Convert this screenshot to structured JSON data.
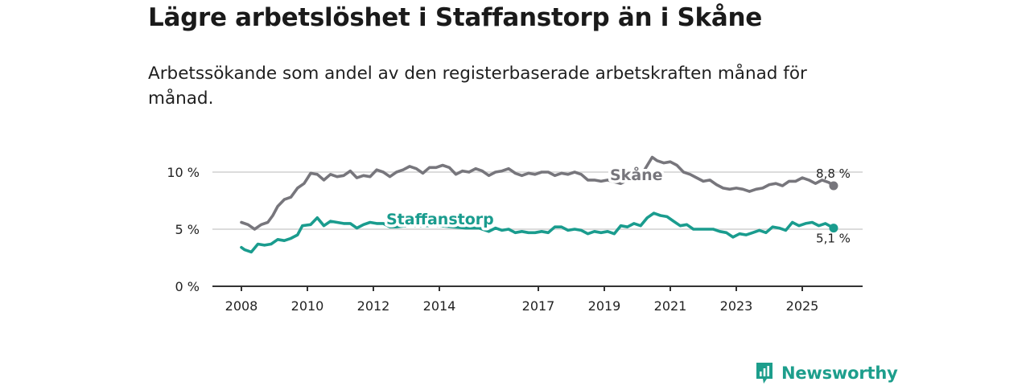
{
  "title": "Lägre arbetslöshet i Staffanstorp än i Skåne",
  "subtitle": "Arbetssökande som andel av den registerbaserade arbetskraften månad för månad.",
  "brand": {
    "name": "Newsworthy",
    "icon": "newsworthy-logo-icon"
  },
  "colors": {
    "skane": "#77767c",
    "staffanstorp": "#1a9c8e",
    "grid": "#dcdcdc",
    "axis": "#333333"
  },
  "chart_data": {
    "type": "line",
    "xlabel": "",
    "ylabel": "",
    "xlim": [
      2007.9,
      2026.4
    ],
    "ylim": [
      0,
      10
    ],
    "x_ticks": [
      2008,
      2010,
      2012,
      2014,
      2017,
      2019,
      2021,
      2023,
      2025
    ],
    "x_tick_labels": [
      "2008",
      "2010",
      "2012",
      "2014",
      "2017",
      "2019",
      "2021",
      "2023",
      "2025"
    ],
    "y_ticks": [
      0,
      5,
      10
    ],
    "y_tick_labels": [
      "0 %",
      "5 %",
      "10 %"
    ],
    "grid": true,
    "series": [
      {
        "name": "Skåne",
        "end_label": "8,8 %",
        "points": [
          [
            2008.0,
            5.6
          ],
          [
            2008.2,
            5.4
          ],
          [
            2008.4,
            5.0
          ],
          [
            2008.6,
            5.4
          ],
          [
            2008.8,
            5.6
          ],
          [
            2008.95,
            6.2
          ],
          [
            2009.1,
            7.0
          ],
          [
            2009.3,
            7.6
          ],
          [
            2009.5,
            7.8
          ],
          [
            2009.7,
            8.6
          ],
          [
            2009.9,
            9.0
          ],
          [
            2010.1,
            9.9
          ],
          [
            2010.3,
            9.8
          ],
          [
            2010.5,
            9.3
          ],
          [
            2010.7,
            9.8
          ],
          [
            2010.9,
            9.6
          ],
          [
            2011.1,
            9.7
          ],
          [
            2011.3,
            10.1
          ],
          [
            2011.5,
            9.5
          ],
          [
            2011.7,
            9.7
          ],
          [
            2011.9,
            9.6
          ],
          [
            2012.1,
            10.2
          ],
          [
            2012.3,
            10.0
          ],
          [
            2012.5,
            9.6
          ],
          [
            2012.7,
            10.0
          ],
          [
            2012.9,
            10.2
          ],
          [
            2013.1,
            10.5
          ],
          [
            2013.3,
            10.3
          ],
          [
            2013.5,
            9.9
          ],
          [
            2013.7,
            10.4
          ],
          [
            2013.9,
            10.4
          ],
          [
            2014.1,
            10.6
          ],
          [
            2014.3,
            10.4
          ],
          [
            2014.5,
            9.8
          ],
          [
            2014.7,
            10.1
          ],
          [
            2014.9,
            10.0
          ],
          [
            2015.1,
            10.3
          ],
          [
            2015.3,
            10.1
          ],
          [
            2015.5,
            9.7
          ],
          [
            2015.7,
            10.0
          ],
          [
            2015.9,
            10.1
          ],
          [
            2016.1,
            10.3
          ],
          [
            2016.3,
            9.9
          ],
          [
            2016.5,
            9.7
          ],
          [
            2016.7,
            9.9
          ],
          [
            2016.9,
            9.8
          ],
          [
            2017.1,
            10.0
          ],
          [
            2017.3,
            10.0
          ],
          [
            2017.5,
            9.7
          ],
          [
            2017.7,
            9.9
          ],
          [
            2017.9,
            9.8
          ],
          [
            2018.1,
            10.0
          ],
          [
            2018.3,
            9.8
          ],
          [
            2018.5,
            9.3
          ],
          [
            2018.7,
            9.3
          ],
          [
            2018.9,
            9.2
          ],
          [
            2019.1,
            9.3
          ],
          [
            2019.5,
            9.0
          ],
          [
            2019.9,
            9.6
          ],
          [
            2020.2,
            10.1
          ],
          [
            2020.45,
            11.3
          ],
          [
            2020.6,
            11.0
          ],
          [
            2020.8,
            10.8
          ],
          [
            2021.0,
            10.9
          ],
          [
            2021.2,
            10.6
          ],
          [
            2021.4,
            10.0
          ],
          [
            2021.6,
            9.8
          ],
          [
            2021.8,
            9.5
          ],
          [
            2022.0,
            9.2
          ],
          [
            2022.2,
            9.3
          ],
          [
            2022.4,
            8.9
          ],
          [
            2022.6,
            8.6
          ],
          [
            2022.8,
            8.5
          ],
          [
            2023.0,
            8.6
          ],
          [
            2023.2,
            8.5
          ],
          [
            2023.4,
            8.3
          ],
          [
            2023.6,
            8.5
          ],
          [
            2023.8,
            8.6
          ],
          [
            2024.0,
            8.9
          ],
          [
            2024.2,
            9.0
          ],
          [
            2024.4,
            8.8
          ],
          [
            2024.6,
            9.2
          ],
          [
            2024.8,
            9.2
          ],
          [
            2025.0,
            9.5
          ],
          [
            2025.2,
            9.3
          ],
          [
            2025.4,
            9.0
          ],
          [
            2025.6,
            9.3
          ],
          [
            2025.8,
            9.1
          ],
          [
            2025.95,
            8.8
          ]
        ]
      },
      {
        "name": "Staffanstorp",
        "end_label": "5,1 %",
        "points": [
          [
            2008.0,
            3.4
          ],
          [
            2008.1,
            3.2
          ],
          [
            2008.3,
            3.0
          ],
          [
            2008.5,
            3.7
          ],
          [
            2008.7,
            3.6
          ],
          [
            2008.9,
            3.7
          ],
          [
            2009.1,
            4.1
          ],
          [
            2009.3,
            4.0
          ],
          [
            2009.5,
            4.2
          ],
          [
            2009.7,
            4.5
          ],
          [
            2009.85,
            5.3
          ],
          [
            2010.1,
            5.4
          ],
          [
            2010.3,
            6.0
          ],
          [
            2010.5,
            5.3
          ],
          [
            2010.7,
            5.7
          ],
          [
            2010.9,
            5.6
          ],
          [
            2011.1,
            5.5
          ],
          [
            2011.3,
            5.5
          ],
          [
            2011.5,
            5.1
          ],
          [
            2011.7,
            5.4
          ],
          [
            2011.9,
            5.6
          ],
          [
            2012.1,
            5.5
          ],
          [
            2012.3,
            5.5
          ],
          [
            2012.5,
            5.2
          ],
          [
            2012.7,
            5.2
          ],
          [
            2013.0,
            5.3
          ],
          [
            2013.5,
            5.3
          ],
          [
            2014.0,
            5.3
          ],
          [
            2014.4,
            5.2
          ],
          [
            2014.8,
            5.1
          ],
          [
            2015.2,
            5.1
          ],
          [
            2015.5,
            4.8
          ],
          [
            2015.7,
            5.1
          ],
          [
            2015.9,
            4.9
          ],
          [
            2016.1,
            5.0
          ],
          [
            2016.3,
            4.7
          ],
          [
            2016.5,
            4.8
          ],
          [
            2016.7,
            4.7
          ],
          [
            2016.9,
            4.7
          ],
          [
            2017.1,
            4.8
          ],
          [
            2017.3,
            4.7
          ],
          [
            2017.5,
            5.2
          ],
          [
            2017.7,
            5.2
          ],
          [
            2017.9,
            4.9
          ],
          [
            2018.1,
            5.0
          ],
          [
            2018.3,
            4.9
          ],
          [
            2018.5,
            4.6
          ],
          [
            2018.7,
            4.8
          ],
          [
            2018.9,
            4.7
          ],
          [
            2019.1,
            4.8
          ],
          [
            2019.3,
            4.6
          ],
          [
            2019.5,
            5.3
          ],
          [
            2019.7,
            5.2
          ],
          [
            2019.9,
            5.5
          ],
          [
            2020.1,
            5.3
          ],
          [
            2020.3,
            6.0
          ],
          [
            2020.5,
            6.4
          ],
          [
            2020.7,
            6.2
          ],
          [
            2020.9,
            6.1
          ],
          [
            2021.1,
            5.7
          ],
          [
            2021.3,
            5.3
          ],
          [
            2021.5,
            5.4
          ],
          [
            2021.7,
            5.0
          ],
          [
            2021.9,
            5.0
          ],
          [
            2022.1,
            5.0
          ],
          [
            2022.3,
            5.0
          ],
          [
            2022.5,
            4.8
          ],
          [
            2022.7,
            4.7
          ],
          [
            2022.9,
            4.3
          ],
          [
            2023.1,
            4.6
          ],
          [
            2023.3,
            4.5
          ],
          [
            2023.5,
            4.7
          ],
          [
            2023.7,
            4.9
          ],
          [
            2023.9,
            4.7
          ],
          [
            2024.1,
            5.2
          ],
          [
            2024.3,
            5.1
          ],
          [
            2024.5,
            4.9
          ],
          [
            2024.7,
            5.6
          ],
          [
            2024.9,
            5.3
          ],
          [
            2025.1,
            5.5
          ],
          [
            2025.3,
            5.6
          ],
          [
            2025.5,
            5.3
          ],
          [
            2025.7,
            5.5
          ],
          [
            2025.95,
            5.1
          ]
        ]
      }
    ]
  }
}
